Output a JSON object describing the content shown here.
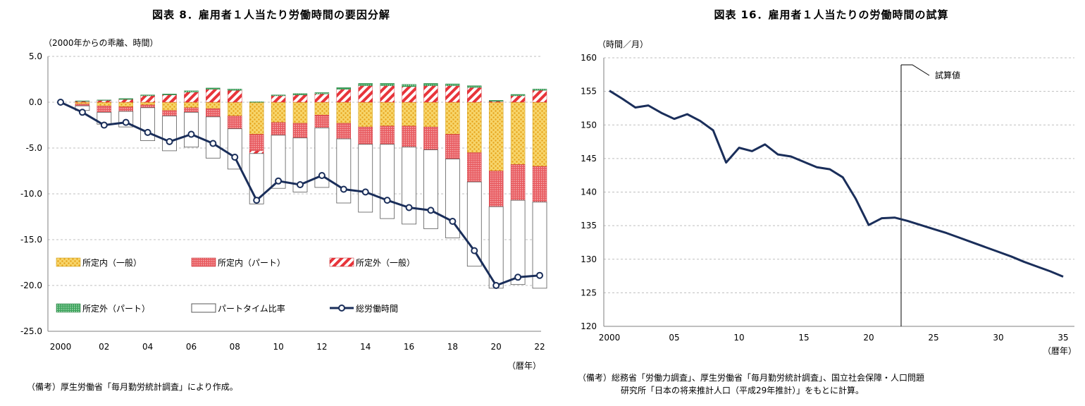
{
  "left_chart": {
    "title": "図表 8．雇用者１人当たり労働時間の要因分解",
    "unit_label": "（2000年からの乖離、時間）",
    "x_unit": "（暦年）",
    "note": "（備考）厚生労働省「毎月勤労統計調査」により作成。",
    "y_tick_labels": [
      "5.0",
      "0.0",
      "-5.0",
      "-10.0",
      "-15.0",
      "-20.0",
      "-25.0"
    ],
    "x_tick_labels": [
      "2000",
      "02",
      "04",
      "06",
      "08",
      "10",
      "12",
      "14",
      "16",
      "18",
      "20",
      "22"
    ],
    "legend": [
      "所定内（一般）",
      "所定内（パート）",
      "所定外（一般）",
      "所定外（パート）",
      "パートタイム比率",
      "総労働時間"
    ],
    "colors": {
      "gen_reg": "#f5c22a",
      "part_reg": "#e8343a",
      "gen_over": "#e8343a",
      "part_over": "#3aa35a",
      "ratio": "#ffffff",
      "total": "#1a2e5a"
    }
  },
  "right_chart": {
    "title": "図表 16．雇用者１人当たりの労働時間の試算",
    "unit_label": "（時間／月）",
    "x_unit": "（暦年）",
    "annotation": "試算値",
    "note_line1": "（備考）総務省「労働力調査」、厚生労働省「毎月勤労統計調査」、国立社会保障・人口問題",
    "note_line2": "研究所「日本の将来推計人口（平成29年推計）」をもとに計算。",
    "y_tick_labels": [
      "160",
      "155",
      "150",
      "145",
      "140",
      "135",
      "130",
      "125",
      "120"
    ],
    "x_tick_labels": [
      "2000",
      "05",
      "10",
      "15",
      "20",
      "25",
      "30",
      "35"
    ],
    "line_color": "#1a2e5a"
  },
  "chart_data": [
    {
      "type": "bar",
      "title": "図表 8．雇用者１人当たり労働時間の要因分解",
      "ylabel": "（2000年からの乖離、時間）",
      "xlabel": "（暦年）",
      "ylim": [
        -25,
        5
      ],
      "grid": true,
      "legend_position": "bottom-left",
      "x": [
        2000,
        2001,
        2002,
        2003,
        2004,
        2005,
        2006,
        2007,
        2008,
        2009,
        2010,
        2011,
        2012,
        2013,
        2014,
        2015,
        2016,
        2017,
        2018,
        2019,
        2020,
        2021,
        2022
      ],
      "series": [
        {
          "name": "所定内（一般）",
          "values": [
            0,
            -0.2,
            -0.4,
            -0.5,
            -0.3,
            -0.9,
            -0.6,
            -0.7,
            -1.5,
            -3.5,
            -2.2,
            -2.3,
            -1.4,
            -2.3,
            -2.7,
            -2.6,
            -2.6,
            -2.7,
            -3.5,
            -5.5,
            -7.5,
            -6.8,
            -7.0
          ]
        },
        {
          "name": "所定内（パート）",
          "values": [
            0,
            -0.2,
            -0.7,
            -0.5,
            -0.3,
            -0.6,
            -0.5,
            -0.9,
            -1.4,
            -1.8,
            -1.4,
            -1.6,
            -1.4,
            -1.7,
            -1.9,
            -2.0,
            -2.3,
            -2.5,
            -2.7,
            -3.2,
            -3.9,
            -3.9,
            -3.9
          ]
        },
        {
          "name": "所定外（一般）",
          "values": [
            0,
            0.1,
            0.2,
            0.3,
            0.7,
            0.8,
            1.1,
            1.4,
            1.3,
            -0.3,
            0.7,
            0.8,
            0.9,
            1.4,
            1.8,
            1.8,
            1.7,
            1.8,
            1.8,
            1.6,
            0.1,
            0.7,
            1.3
          ]
        },
        {
          "name": "所定外（パート）",
          "values": [
            0,
            0.05,
            0.05,
            0.1,
            0.1,
            0.1,
            0.15,
            0.15,
            0.15,
            0.05,
            0.1,
            0.15,
            0.15,
            0.2,
            0.25,
            0.25,
            0.25,
            0.25,
            0.2,
            0.2,
            0.1,
            0.15,
            0.15
          ]
        },
        {
          "name": "パートタイム比率",
          "values": [
            0,
            -0.5,
            -1.3,
            -1.7,
            -3.6,
            -3.8,
            -3.8,
            -4.5,
            -4.4,
            -5.5,
            -5.8,
            -5.9,
            -6.5,
            -7.0,
            -7.4,
            -8.1,
            -8.4,
            -8.6,
            -8.6,
            -9.2,
            -8.9,
            -9.2,
            -9.4
          ]
        },
        {
          "name": "総労働時間",
          "values": [
            0.0,
            -1.1,
            -2.5,
            -2.2,
            -3.3,
            -4.3,
            -3.5,
            -4.5,
            -6.0,
            -10.7,
            -8.6,
            -9.0,
            -8.0,
            -9.5,
            -9.8,
            -10.7,
            -11.5,
            -11.8,
            -13.0,
            -16.2,
            -20.0,
            -19.1,
            -18.9
          ]
        }
      ]
    },
    {
      "type": "line",
      "title": "図表 16．雇用者１人当たりの労働時間の試算",
      "ylabel": "（時間／月）",
      "xlabel": "（暦年）",
      "ylim": [
        120,
        160
      ],
      "xlim": [
        2000,
        2035
      ],
      "grid": true,
      "annotation": "試算値",
      "annotation_x": 2022.5,
      "x": [
        2000,
        2001,
        2002,
        2003,
        2004,
        2005,
        2006,
        2007,
        2008,
        2009,
        2010,
        2011,
        2012,
        2013,
        2014,
        2015,
        2016,
        2017,
        2018,
        2019,
        2020,
        2021,
        2022,
        2023,
        2024,
        2025,
        2026,
        2027,
        2028,
        2029,
        2030,
        2031,
        2032,
        2033,
        2034,
        2035
      ],
      "series": [
        {
          "values": [
            155.1,
            153.9,
            152.6,
            152.9,
            151.8,
            150.9,
            151.6,
            150.6,
            149.2,
            144.4,
            146.6,
            146.1,
            147.1,
            145.6,
            145.3,
            144.5,
            143.7,
            143.4,
            142.2,
            139.0,
            135.1,
            136.1,
            136.2,
            135.7,
            135.1,
            134.5,
            133.9,
            133.2,
            132.5,
            131.8,
            131.1,
            130.4,
            129.6,
            128.9,
            128.2,
            127.4
          ]
        }
      ]
    }
  ]
}
